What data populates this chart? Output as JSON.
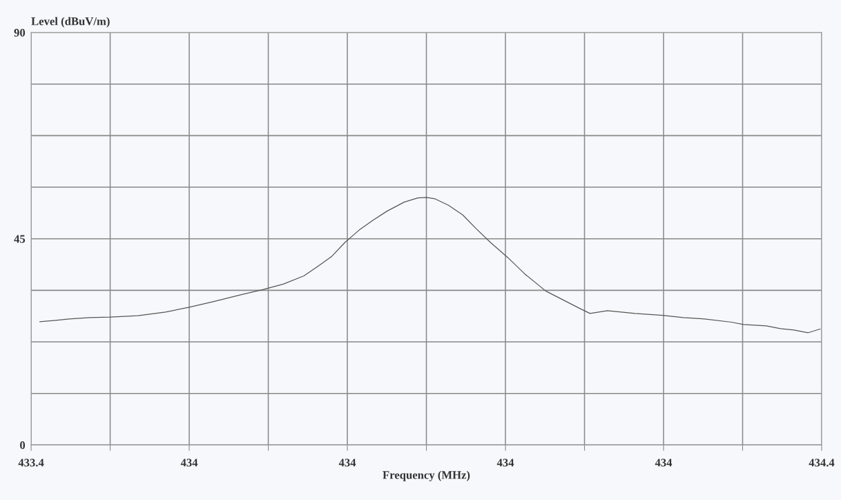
{
  "chart_data": {
    "type": "line",
    "xlabel": "Frequency (MHz)",
    "ylabel": "Level (dBuV/m)",
    "xlim": [
      433.4,
      434.4
    ],
    "ylim": [
      0,
      90
    ],
    "xticks": [
      433.4,
      {
        "value": 433.5,
        "label": null
      },
      {
        "value": 433.6,
        "label": "434"
      },
      {
        "value": 433.7,
        "label": null
      },
      {
        "value": 433.8,
        "label": "434"
      },
      {
        "value": 433.9,
        "label": null
      },
      {
        "value": 434.0,
        "label": "434"
      },
      {
        "value": 434.1,
        "label": null
      },
      {
        "value": 434.2,
        "label": "434"
      },
      {
        "value": 434.3,
        "label": null
      },
      434.4
    ],
    "yticks": [
      0,
      {
        "value": 11.25,
        "label": null
      },
      {
        "value": 22.5,
        "label": null
      },
      {
        "value": 33.75,
        "label": null
      },
      45,
      {
        "value": 56.25,
        "label": null
      },
      {
        "value": 67.5,
        "label": null
      },
      {
        "value": 78.75,
        "label": null
      },
      90
    ],
    "grid": true,
    "marker": "none",
    "line_style": "solid",
    "series": [
      {
        "color": "#555555",
        "x": [
          433.411,
          433.431,
          433.448,
          433.474,
          433.5,
          433.535,
          433.57,
          433.601,
          433.631,
          433.666,
          433.693,
          433.719,
          433.745,
          433.762,
          433.78,
          433.797,
          433.815,
          433.832,
          433.85,
          433.872,
          433.889,
          433.9,
          433.911,
          433.928,
          433.946,
          433.963,
          433.981,
          434.003,
          434.024,
          434.051,
          434.068,
          434.094,
          434.107,
          434.129,
          434.164,
          434.199,
          434.225,
          434.252,
          434.286,
          434.301,
          434.33,
          434.348,
          434.365,
          434.383,
          434.398
        ],
        "values": [
          26.9,
          27.2,
          27.5,
          27.8,
          27.9,
          28.2,
          29.0,
          30.1,
          31.3,
          32.8,
          33.9,
          35.1,
          36.9,
          38.9,
          41.1,
          44.2,
          46.9,
          49.0,
          51.0,
          53.0,
          53.9,
          54.0,
          53.7,
          52.3,
          50.2,
          47.2,
          44.2,
          40.9,
          37.4,
          33.6,
          32.1,
          29.8,
          28.7,
          29.3,
          28.7,
          28.3,
          27.8,
          27.5,
          26.8,
          26.3,
          26.0,
          25.4,
          25.1,
          24.5,
          25.3
        ]
      }
    ]
  }
}
